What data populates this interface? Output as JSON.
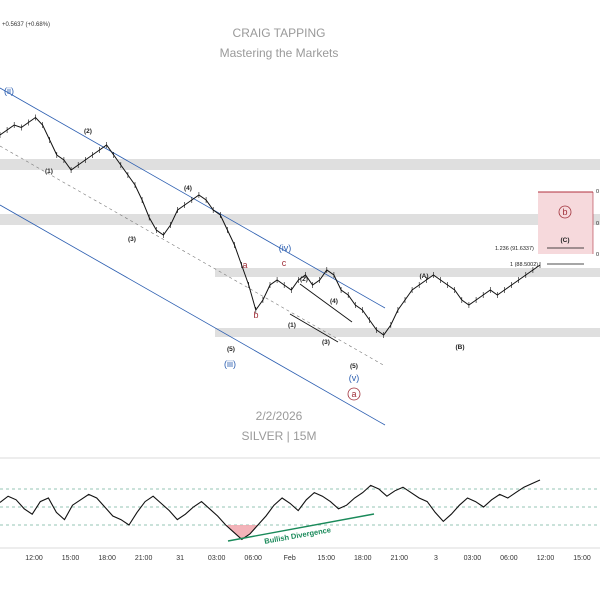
{
  "header": {
    "change": "+0.5637 (+0.68%)"
  },
  "watermark": {
    "author": "CRAIG TAPPING",
    "subtitle": "Mastering the Markets",
    "date": "2/2/2026",
    "instrument": "SILVER | 15M"
  },
  "chart_data": {
    "type": "line",
    "instrument": "SILVER | 15M",
    "title": "CRAIG TAPPING",
    "subtitle": "Mastering the Markets",
    "x_ticks": [
      "12:00",
      "15:00",
      "18:00",
      "21:00",
      "31",
      "03:00",
      "06:00",
      "Feb",
      "15:00",
      "18:00",
      "21:00",
      "3",
      "03:00",
      "06:00",
      "12:00",
      "15:00"
    ],
    "price_series": {
      "name": "",
      "note_units": "relative price level read from the chart, 0 = lowest visible low",
      "values": [
        88,
        90,
        92,
        91,
        93,
        95,
        92,
        86,
        80,
        78,
        74,
        76,
        78,
        80,
        82,
        84,
        80,
        76,
        72,
        68,
        62,
        55,
        50,
        48,
        52,
        58,
        60,
        62,
        64,
        62,
        58,
        56,
        50,
        44,
        36,
        28,
        18,
        22,
        28,
        30,
        28,
        26,
        30,
        32,
        28,
        30,
        34,
        32,
        26,
        24,
        20,
        18,
        14,
        10,
        8,
        12,
        18,
        22,
        26,
        28,
        30,
        32,
        30,
        28,
        26,
        22,
        20,
        22,
        24,
        26,
        24,
        26,
        28,
        30,
        32,
        34,
        36
      ]
    },
    "oscillator": {
      "name": "",
      "levels": [
        70,
        50,
        30
      ],
      "values": [
        55,
        62,
        58,
        48,
        42,
        56,
        60,
        44,
        36,
        52,
        58,
        64,
        60,
        50,
        40,
        36,
        30,
        44,
        56,
        62,
        54,
        46,
        36,
        42,
        50,
        56,
        48,
        40,
        30,
        22,
        14,
        20,
        30,
        40,
        52,
        60,
        54,
        46,
        58,
        66,
        62,
        56,
        48,
        52,
        60,
        66,
        74,
        70,
        62,
        68,
        72,
        66,
        60,
        56,
        44,
        34,
        42,
        52,
        60,
        56,
        50,
        58,
        64,
        60,
        66,
        72,
        76,
        80
      ]
    },
    "wave_labels": [
      "(ii)",
      "(1)",
      "(2)",
      "(3)",
      "(4)",
      "(5)",
      "(iii)",
      "a",
      "b",
      "c",
      "(iv)",
      "(1)",
      "(2)",
      "(3)",
      "(4)",
      "(5)",
      "(v)",
      "a",
      "(A)",
      "(B)",
      "(C)",
      "b"
    ],
    "fib_levels": [
      {
        "label": "1.236 (91.6337)"
      },
      {
        "label": "1 (88.5002)"
      }
    ],
    "annotations": [
      "Bullish Divergence"
    ],
    "right_edge_labels": [
      "0",
      "0",
      "0"
    ],
    "zones": [
      {
        "color": "#d9d9d9"
      },
      {
        "color": "#f6d9dc"
      }
    ],
    "colors": {
      "channel": "#2a5db0",
      "zone": "#d9d9d9",
      "target_zone": "#f6d9dc",
      "target_border": "#b0303e",
      "divergence": "#1a8a5a",
      "oversold_fill": "#f0a0a8"
    },
    "grid": false
  }
}
